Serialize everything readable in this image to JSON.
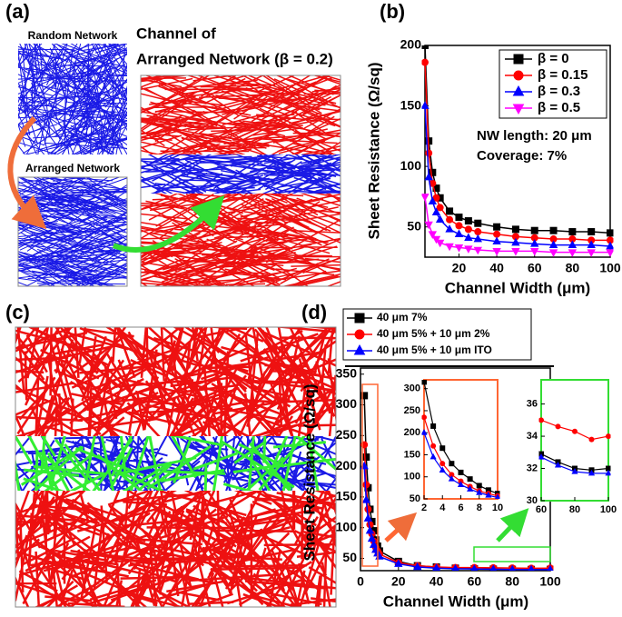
{
  "figure": {
    "labels": [
      "(a)",
      "(b)",
      "(c)",
      "(d)"
    ],
    "a_texts": [
      "Random Network",
      "Arranged Network",
      "Channel of",
      "Arranged Network (β = 0.2)"
    ]
  },
  "chart_data": [
    {
      "type": "line",
      "x_label": "Channel Width (μm)",
      "y_label": "Sheet Resistance (Ω/sq)",
      "annotations": [
        "NW length: 20 μm",
        "Coverage: 7%"
      ],
      "x": [
        2,
        4,
        6,
        8,
        10,
        15,
        20,
        25,
        30,
        40,
        50,
        60,
        70,
        80,
        90,
        100
      ],
      "series": [
        {
          "name": "β = 0",
          "color": "#000000",
          "marker": "square",
          "values": [
            200,
            121,
            95,
            82,
            74,
            63,
            58,
            55,
            53,
            50,
            48,
            47,
            47,
            46,
            46,
            45
          ]
        },
        {
          "name": "β = 0.15",
          "color": "#ff0000",
          "marker": "circle",
          "values": [
            186,
            111,
            86,
            74,
            66,
            56,
            51,
            48,
            46,
            44,
            42,
            41,
            40,
            40,
            39,
            39
          ]
        },
        {
          "name": "β = 0.3",
          "color": "#0000ff",
          "marker": "triangle",
          "values": [
            150,
            91,
            71,
            62,
            56,
            48,
            44,
            41,
            40,
            38,
            37,
            36,
            35,
            35,
            35,
            34
          ]
        },
        {
          "name": "β = 0.5",
          "color": "#ff00ff",
          "marker": "triangle-down",
          "values": [
            75,
            52,
            44,
            40,
            37,
            34,
            33,
            32,
            31,
            30,
            30,
            30,
            29,
            29,
            29,
            29
          ]
        }
      ],
      "xlim": [
        2,
        100
      ],
      "ylim": [
        25,
        200
      ],
      "xticks": [
        20,
        40,
        60,
        80,
        100
      ],
      "yticks": [
        50,
        100,
        150,
        200
      ]
    },
    {
      "type": "line",
      "x_label": "Channel Width (μm)",
      "y_label": "Sheet Resistance (Ω/sq)",
      "x": [
        2,
        3,
        4,
        5,
        6,
        7,
        8,
        9,
        10,
        20,
        30,
        40,
        50,
        60,
        70,
        80,
        90,
        100
      ],
      "series": [
        {
          "name": "40 μm 7%",
          "color": "#000000",
          "marker": "square",
          "values": [
            315,
            215,
            165,
            130,
            110,
            95,
            80,
            70,
            62,
            45,
            38,
            36,
            34,
            32.9,
            32.4,
            32.0,
            31.9,
            32.0
          ]
        },
        {
          "name": "40 μm 5% + 10 μm 2%",
          "color": "#ff0000",
          "marker": "circle",
          "values": [
            235,
            170,
            130,
            105,
            90,
            78,
            68,
            62,
            57,
            43,
            38,
            36,
            35,
            35.0,
            34.6,
            34.3,
            33.8,
            34.0
          ]
        },
        {
          "name": "40 μm 5% + 10 μm ITO",
          "color": "#0000ff",
          "marker": "triangle",
          "values": [
            200,
            145,
            115,
            95,
            82,
            72,
            64,
            58,
            53,
            41,
            36,
            34,
            33,
            32.7,
            32.2,
            31.8,
            31.7,
            31.7
          ]
        }
      ],
      "xlim": [
        0,
        100
      ],
      "ylim": [
        30,
        360
      ],
      "xticks": [
        0,
        20,
        40,
        60,
        80,
        100
      ],
      "yticks": [
        50,
        100,
        150,
        200,
        250,
        300,
        350
      ],
      "insets": [
        {
          "xlim": [
            2,
            10
          ],
          "ylim": [
            50,
            320
          ],
          "xticks": [
            2,
            4,
            6,
            8,
            10
          ],
          "yticks": [
            50,
            100,
            150,
            200,
            250,
            300
          ],
          "color": "#ff6633"
        },
        {
          "xlim": [
            60,
            100
          ],
          "ylim": [
            30,
            37.5
          ],
          "xticks": [
            60,
            80,
            100
          ],
          "yticks": [
            30,
            32,
            34,
            36
          ],
          "color": "#33dd33"
        }
      ]
    }
  ]
}
